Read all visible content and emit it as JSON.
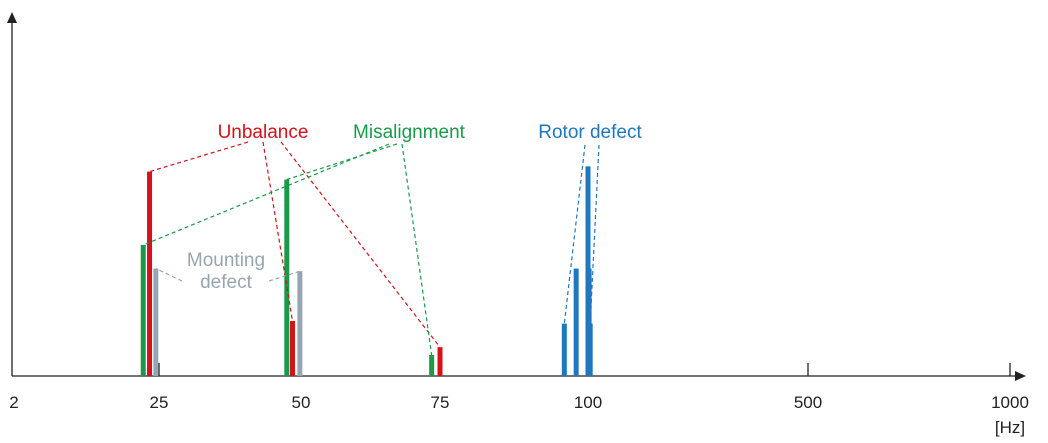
{
  "chart_data": {
    "type": "bar",
    "title": "",
    "xlabel": "",
    "ylabel": "",
    "x_unit_label": "[Hz]",
    "x_ticks": [
      {
        "label": "2",
        "value": 2
      },
      {
        "label": "25",
        "value": 25
      },
      {
        "label": "50",
        "value": 50
      },
      {
        "label": "75",
        "value": 75
      },
      {
        "label": "100",
        "value": 100
      },
      {
        "label": "500",
        "value": 500
      },
      {
        "label": "1000",
        "value": 1000
      }
    ],
    "y_axis_ticks": "none",
    "grid": false,
    "legend": "none (callout labels)",
    "groups": [
      {
        "name": "Unbalance",
        "color": "#d4121a",
        "bars": [
          {
            "x": 23.5,
            "value": 0.78
          },
          {
            "x": 48.5,
            "value": 0.21
          },
          {
            "x": 75,
            "value": 0.11
          }
        ]
      },
      {
        "name": "Misalignment",
        "color": "#1a9a48",
        "bars": [
          {
            "x": 22.5,
            "value": 0.5
          },
          {
            "x": 47.5,
            "value": 0.75
          },
          {
            "x": 73.5,
            "value": 0.08
          }
        ]
      },
      {
        "name": "Mounting\ndefect",
        "color": "#97a5b0",
        "bars": [
          {
            "x": 24.5,
            "value": 0.41
          },
          {
            "x": 49.8,
            "value": 0.4
          }
        ]
      },
      {
        "name": "Rotor defect",
        "color": "#1f77bf",
        "bars": [
          {
            "x": 96,
            "value": 0.2
          },
          {
            "x": 98,
            "value": 0.41
          },
          {
            "x": 100,
            "value": 0.8
          },
          {
            "x": 102,
            "value": 0.41
          },
          {
            "x": 104,
            "value": 0.2
          }
        ]
      }
    ]
  }
}
